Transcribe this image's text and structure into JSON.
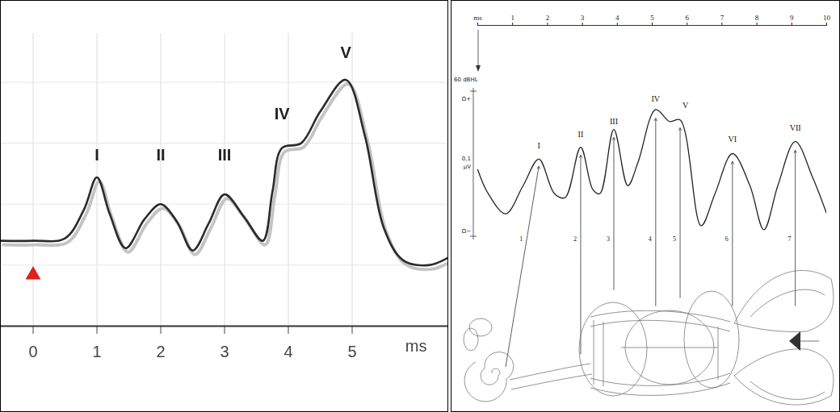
{
  "chart_data": [
    {
      "type": "line",
      "x_label": "ms",
      "x": [
        -0.5,
        0,
        0.5,
        0.8,
        1.0,
        1.2,
        1.45,
        1.75,
        2.0,
        2.25,
        2.5,
        2.75,
        3.0,
        3.3,
        3.6,
        3.75,
        3.9,
        4.2,
        4.5,
        4.9,
        5.2,
        5.5,
        5.8,
        6.2,
        6.5
      ],
      "values": [
        3.5,
        3.5,
        3.6,
        4.8,
        6.1,
        4.6,
        3.2,
        4.4,
        5.0,
        4.3,
        3.1,
        4.2,
        5.4,
        4.5,
        3.5,
        5.5,
        7.3,
        7.5,
        8.8,
        10.1,
        7.8,
        4.0,
        2.7,
        2.5,
        2.8
      ],
      "color": "#2b2b2b",
      "xlim": [
        -0.5,
        6.5
      ],
      "xticks": [
        0,
        1,
        2,
        3,
        4,
        5
      ],
      "ylim": [
        0,
        12
      ],
      "yticks": [
        2.5,
        5,
        7.5,
        10
      ],
      "grid": true,
      "tick_labels": "x",
      "annotations": [
        {
          "text": "I",
          "x": 1.0,
          "y": 7.0
        },
        {
          "text": "II",
          "x": 2.0,
          "y": 7.0
        },
        {
          "text": "III",
          "x": 3.0,
          "y": 7.0
        },
        {
          "text": "IV",
          "x": 3.9,
          "y": 8.7
        },
        {
          "text": "V",
          "x": 4.9,
          "y": 11.2
        }
      ],
      "markers": [
        {
          "x": 0,
          "y": 2.1,
          "color": "#e0201f",
          "marker": "triangle"
        }
      ]
    },
    {
      "type": "line",
      "x": [
        0,
        0.3,
        0.8,
        1.3,
        1.75,
        2.2,
        2.5,
        2.95,
        3.3,
        3.5,
        3.9,
        4.3,
        4.6,
        5.1,
        5.5,
        5.8,
        6.4,
        6.8,
        7.3,
        7.8,
        8.2,
        8.6,
        9.1,
        9.6,
        10
      ],
      "values": [
        6,
        4.5,
        3.25,
        5,
        6.65,
        4.5,
        4.25,
        7.4,
        4.75,
        4.5,
        8.5,
        5,
        6.5,
        9.75,
        9,
        9.1,
        2.5,
        4.5,
        7,
        5,
        2.25,
        5,
        7.75,
        5.5,
        3.25
      ],
      "color": "#222222",
      "xlim": [
        0,
        10
      ],
      "xticks": [
        {
          "value": 0,
          "label": "ms"
        },
        1,
        2,
        3,
        4,
        5,
        6,
        7,
        8,
        9,
        10
      ],
      "ylim": [
        -9,
        15
      ],
      "grid": false,
      "tick_labels": "x",
      "annotations": [
        {
          "text": "I",
          "x": 1.75,
          "y": 7.5
        },
        {
          "text": "II",
          "x": 2.95,
          "y": 8.2
        },
        {
          "text": "III",
          "x": 3.9,
          "y": 9.0
        },
        {
          "text": "IV",
          "x": 5.1,
          "y": 10.4
        },
        {
          "text": "V",
          "x": 5.95,
          "y": 10.0
        },
        {
          "text": "VI",
          "x": 7.3,
          "y": 7.9
        },
        {
          "text": "VII",
          "x": 9.1,
          "y": 8.6
        }
      ],
      "arrows": [
        {
          "label": "1",
          "x": 1.75,
          "y": 6.2
        },
        {
          "label": "2",
          "x": 2.95,
          "y": 6.9
        },
        {
          "label": "3",
          "x": 3.9,
          "y": 8.0
        },
        {
          "label": "4",
          "x": 5.1,
          "y": 9.2
        },
        {
          "label": "5",
          "x": 5.8,
          "y": 8.6
        },
        {
          "label": "6",
          "x": 7.3,
          "y": 6.5
        },
        {
          "label": "7",
          "x": 9.1,
          "y": 7.2
        }
      ],
      "scale_labels": [
        "60 dBHL",
        "Ω+",
        "0,1",
        "µV",
        "Ω−"
      ]
    }
  ]
}
